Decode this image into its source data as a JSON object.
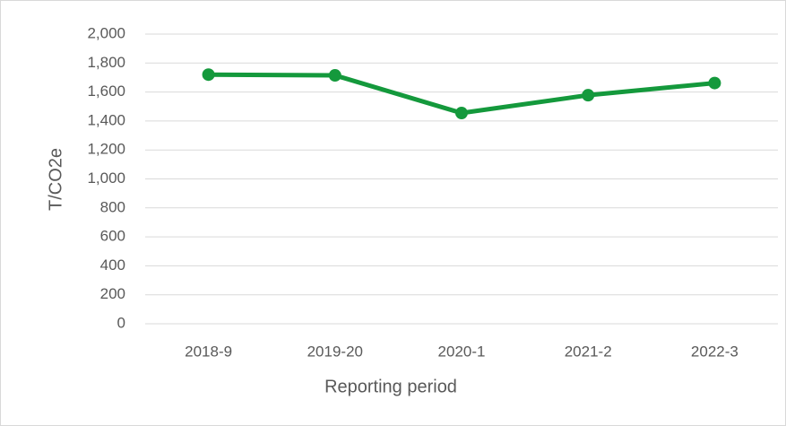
{
  "chart_data": {
    "type": "line",
    "categories": [
      "2018-9",
      "2019-20",
      "2020-1",
      "2021-2",
      "2022-3"
    ],
    "series": [
      {
        "name": "T/CO2e",
        "color": "#14993c",
        "values": [
          1720,
          1715,
          1455,
          1578,
          1662
        ]
      }
    ],
    "xlabel": "Reporting period",
    "ylabel": "T/CO2e",
    "ylim": [
      0,
      2000
    ],
    "yticks": [
      0,
      200,
      400,
      600,
      800,
      {
        "value": 1000,
        "label": "1,000"
      },
      {
        "value": 1200,
        "label": "1,200"
      },
      {
        "value": 1400,
        "label": "1,400"
      },
      {
        "value": 1600,
        "label": "1,600"
      },
      {
        "value": 1800,
        "label": "1,800"
      },
      {
        "value": 2000,
        "label": "2,000"
      }
    ],
    "grid": true
  }
}
